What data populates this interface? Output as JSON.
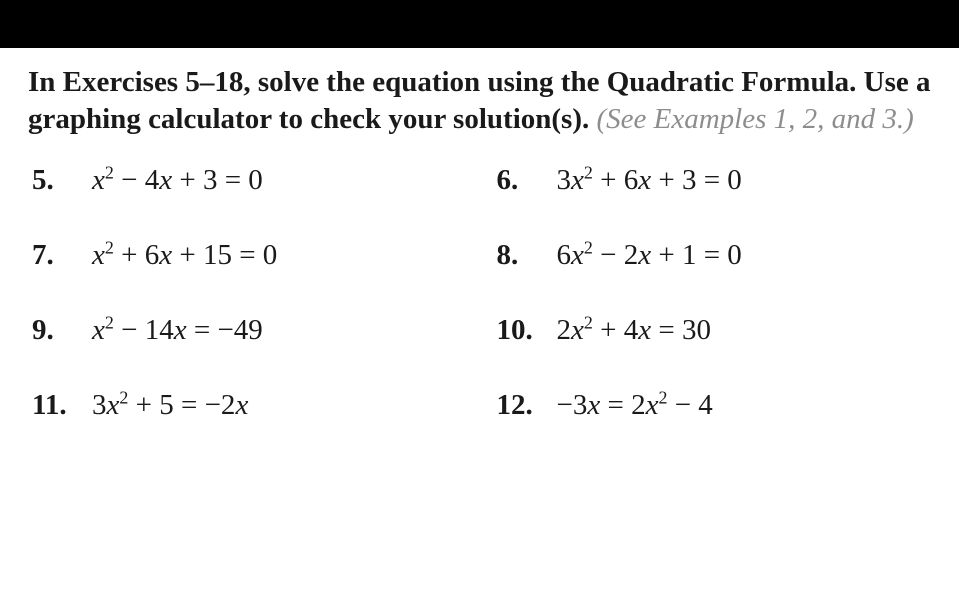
{
  "instructions": {
    "bold_part1": "In Exercises 5–18, solve the equation using the Quadratic Formula. Use a graphing calculator to check your solution(s).",
    "see_examples": "(See Examples 1, 2, and 3.)"
  },
  "problems": [
    {
      "num": "5.",
      "a": 1,
      "b": -4,
      "c": 3,
      "rhs": "0",
      "html": "<i>x</i><sup>2</sup> − 4<i>x</i> + 3 = 0"
    },
    {
      "num": "6.",
      "a": 3,
      "b": 6,
      "c": 3,
      "rhs": "0",
      "html": "3<i>x</i><sup>2</sup> + 6<i>x</i> + 3 = 0"
    },
    {
      "num": "7.",
      "a": 1,
      "b": 6,
      "c": 15,
      "rhs": "0",
      "html": "<i>x</i><sup>2</sup> + 6<i>x</i> + 15 = 0"
    },
    {
      "num": "8.",
      "a": 6,
      "b": -2,
      "c": 1,
      "rhs": "0",
      "html": "6<i>x</i><sup>2</sup> − 2<i>x</i> + 1 = 0"
    },
    {
      "num": "9.",
      "a": 1,
      "b": -14,
      "c": 0,
      "rhs": "-49",
      "html": "<i>x</i><sup>2</sup> − 14<i>x</i> = −49"
    },
    {
      "num": "10.",
      "a": 2,
      "b": 4,
      "c": 0,
      "rhs": "30",
      "html": "2<i>x</i><sup>2</sup> + 4<i>x</i> = 30"
    },
    {
      "num": "11.",
      "a": 3,
      "b": 0,
      "c": 5,
      "rhs": "-2x",
      "html": "3<i>x</i><sup>2</sup> + 5 = −2<i>x</i>"
    },
    {
      "num": "12.",
      "a": 2,
      "b": 0,
      "c": -4,
      "lhs": "-3x",
      "html": "−3<i>x</i> = 2<i>x</i><sup>2</sup> − 4"
    }
  ],
  "colors": {
    "topbar": "#000000",
    "background": "#ffffff",
    "text": "#1a1a1a",
    "faded": "#8d8d8d"
  },
  "fonts": {
    "body_family": "Georgia, Times New Roman, serif",
    "instruction_size_pt": 22,
    "problem_size_pt": 22
  }
}
